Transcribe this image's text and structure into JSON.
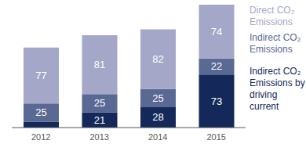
{
  "chart_data": {
    "type": "bar",
    "stacked": true,
    "data_labels": true,
    "tick_labels": "x",
    "legend": "right",
    "grid": false,
    "categories": [
      "2012",
      "2013",
      "2014",
      "2015"
    ],
    "ylim": [
      0,
      170
    ],
    "series": [
      {
        "name": "Indirect CO₂ Emissions by driving current",
        "color": "#14295a",
        "values": [
          8,
          21,
          28,
          73
        ],
        "value_labels": [
          null,
          "21",
          "28",
          "73"
        ]
      },
      {
        "name": "Indirect CO₂ Emissions",
        "color": "#5a6894",
        "values": [
          25,
          25,
          25,
          22
        ]
      },
      {
        "name": "Direct CO₂ Emissions",
        "color": "#a4a7c8",
        "values": [
          77,
          81,
          82,
          74
        ]
      }
    ]
  }
}
